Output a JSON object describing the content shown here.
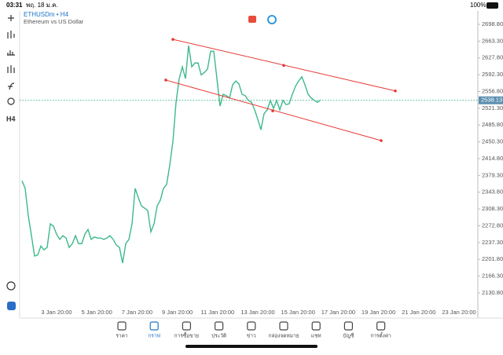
{
  "status_bar": {
    "time": "03:31",
    "date": "พฤ. 18 ม.ค.",
    "battery": "100%"
  },
  "chart_header": {
    "symbol": "ETHUSDm • H4",
    "description": "Ethereum vs US Dollar"
  },
  "toolbar": {
    "timeframe": "H4"
  },
  "chart_data": {
    "type": "line",
    "color": "#3cb98a",
    "series": [
      {
        "values": [
          2368,
          2352,
          2294,
          2252,
          2209,
          2211,
          2230,
          2222,
          2227,
          2277,
          2272,
          2255,
          2244,
          2252,
          2247,
          2227,
          2235,
          2252,
          2235,
          2235,
          2255,
          2265,
          2244,
          2249,
          2247,
          2247,
          2244,
          2247,
          2252,
          2244,
          2232,
          2227,
          2194,
          2235,
          2244,
          2277,
          2352,
          2332,
          2315,
          2310,
          2305,
          2260,
          2277,
          2315,
          2327,
          2352,
          2360,
          2401,
          2451,
          2534,
          2584,
          2609,
          2584,
          2654,
          2609,
          2617,
          2617,
          2592,
          2597,
          2604,
          2642,
          2642,
          2584,
          2526,
          2551,
          2548,
          2543,
          2571,
          2579,
          2573,
          2551,
          2548,
          2538,
          2534,
          2518,
          2498,
          2476,
          2510,
          2518,
          2538,
          2521,
          2538,
          2518,
          2538,
          2529,
          2531,
          2551,
          2568,
          2579,
          2588,
          2571,
          2551,
          2543,
          2538,
          2534,
          2539
        ]
      }
    ],
    "current_price": {
      "value": 2538.13,
      "label": "2538.13"
    },
    "trendlines": [
      {
        "color": "#e53935",
        "start": 2667,
        "mid": 2612,
        "end": 2558
      },
      {
        "color": "#e53935",
        "start": 2581,
        "mid": 2516,
        "end": 2453
      }
    ],
    "ylim": [
      2130.8,
      2698.8
    ],
    "yticks": [
      {
        "value": 2698.8,
        "label": "2698.80"
      },
      {
        "value": 2663.3,
        "label": "2663.30"
      },
      {
        "value": 2627.8,
        "label": "2627.80"
      },
      {
        "value": 2592.3,
        "label": "2592.30"
      },
      {
        "value": 2556.8,
        "label": "2556.80"
      },
      {
        "value": 2521.3,
        "label": "2521.30"
      },
      {
        "value": 2485.8,
        "label": "2485.80"
      },
      {
        "value": 2450.3,
        "label": "2450.30"
      },
      {
        "value": 2414.8,
        "label": "2414.80"
      },
      {
        "value": 2379.3,
        "label": "2379.30"
      },
      {
        "value": 2343.8,
        "label": "2343.80"
      },
      {
        "value": 2308.3,
        "label": "2308.30"
      },
      {
        "value": 2272.8,
        "label": "2272.80"
      },
      {
        "value": 2237.3,
        "label": "2237.30"
      },
      {
        "value": 2201.8,
        "label": "2201.80"
      },
      {
        "value": 2166.3,
        "label": "2166.30"
      },
      {
        "value": 2130.8,
        "label": "2130.80"
      }
    ],
    "x_labels": [
      "3 Jan 20:00",
      "5 Jan 20:00",
      "7 Jan 20:00",
      "9 Jan 20:00",
      "11 Jan 20:00",
      "13 Jan 20:00",
      "15 Jan 20:00",
      "17 Jan 20:00",
      "19 Jan 20:00",
      "21 Jan 20:00",
      "23 Jan 20:00"
    ]
  },
  "nav": {
    "items": [
      "ราคา",
      "กราฟ",
      "การซื้อขาย",
      "ประวัติ",
      "ข่าว",
      "กล่องจดหมาย",
      "แชท",
      "บัญชี",
      "การตั้งค่า"
    ],
    "active": 1
  }
}
